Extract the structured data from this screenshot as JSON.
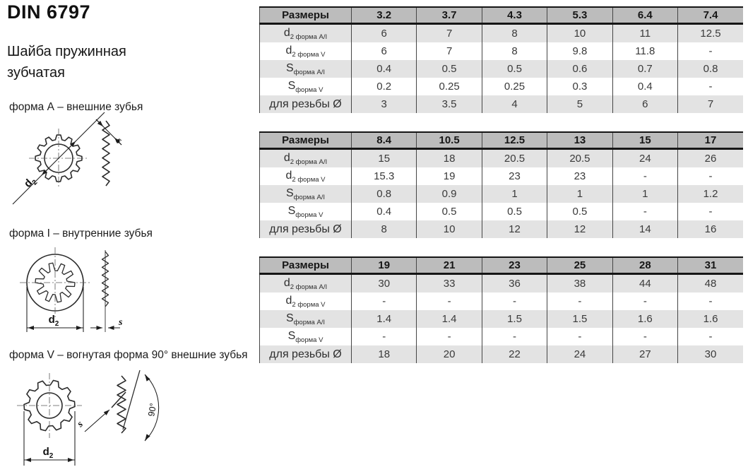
{
  "doc": {
    "title": "DIN 6797",
    "subtitle": "Шайба пружинная зубчатая"
  },
  "forms": [
    {
      "caption": "форма А – внешние зубья"
    },
    {
      "caption": "форма I – внутренние зубья"
    },
    {
      "caption": "форма V – вогнутая форма 90° внешние зубья"
    }
  ],
  "labels": {
    "d2_main": "d",
    "d2_sub": "2",
    "s": "s",
    "angle": "90°"
  },
  "tables": [
    {
      "header_label": "Размеры",
      "columns": [
        "3.2",
        "3.7",
        "4.3",
        "5.3",
        "6.4",
        "7.4"
      ],
      "rows": [
        {
          "label_main": "d",
          "label_sub": "2 форма А/I",
          "values": [
            "6",
            "7",
            "8",
            "10",
            "11",
            "12.5"
          ]
        },
        {
          "label_main": "d",
          "label_sub": "2 форма V",
          "values": [
            "6",
            "7",
            "8",
            "9.8",
            "11.8",
            "-"
          ]
        },
        {
          "label_main": "S",
          "label_sub": "форма А/I",
          "values": [
            "0.4",
            "0.5",
            "0.5",
            "0.6",
            "0.7",
            "0.8"
          ]
        },
        {
          "label_main": "S",
          "label_sub": "форма V",
          "values": [
            "0.2",
            "0.25",
            "0.25",
            "0.3",
            "0.4",
            "-"
          ]
        },
        {
          "label_main": "для резьбы Ø",
          "label_sub": "",
          "values": [
            "3",
            "3.5",
            "4",
            "5",
            "6",
            "7"
          ]
        }
      ]
    },
    {
      "header_label": "Размеры",
      "columns": [
        "8.4",
        "10.5",
        "12.5",
        "13",
        "15",
        "17"
      ],
      "rows": [
        {
          "label_main": "d",
          "label_sub": "2 форма А/I",
          "values": [
            "15",
            "18",
            "20.5",
            "20.5",
            "24",
            "26"
          ]
        },
        {
          "label_main": "d",
          "label_sub": "2 форма V",
          "values": [
            "15.3",
            "19",
            "23",
            "23",
            "-",
            "-"
          ]
        },
        {
          "label_main": "S",
          "label_sub": "форма А/I",
          "values": [
            "0.8",
            "0.9",
            "1",
            "1",
            "1",
            "1.2"
          ]
        },
        {
          "label_main": "S",
          "label_sub": "форма V",
          "values": [
            "0.4",
            "0.5",
            "0.5",
            "0.5",
            "-",
            "-"
          ]
        },
        {
          "label_main": "для резьбы Ø",
          "label_sub": "",
          "values": [
            "8",
            "10",
            "12",
            "12",
            "14",
            "16"
          ]
        }
      ]
    },
    {
      "header_label": "Размеры",
      "columns": [
        "19",
        "21",
        "23",
        "25",
        "28",
        "31"
      ],
      "rows": [
        {
          "label_main": "d",
          "label_sub": "2 форма А/I",
          "values": [
            "30",
            "33",
            "36",
            "38",
            "44",
            "48"
          ]
        },
        {
          "label_main": "d",
          "label_sub": "2 форма V",
          "values": [
            "-",
            "-",
            "-",
            "-",
            "-",
            "-"
          ]
        },
        {
          "label_main": "S",
          "label_sub": "форма А/I",
          "values": [
            "1.4",
            "1.4",
            "1.5",
            "1.5",
            "1.6",
            "1.6"
          ]
        },
        {
          "label_main": "S",
          "label_sub": "форма V",
          "values": [
            "-",
            "-",
            "-",
            "-",
            "-",
            "-"
          ]
        },
        {
          "label_main": "для резьбы Ø",
          "label_sub": "",
          "values": [
            "18",
            "20",
            "22",
            "24",
            "27",
            "30"
          ]
        }
      ]
    }
  ],
  "colors": {
    "header_bg": "#bcbcbc",
    "row_shade": "#e3e3e3",
    "row_plain": "#ffffff",
    "line_heavy": "#151515",
    "line_v": "#454545",
    "text": "#3a3a3a",
    "draw": "#2b2b2b"
  }
}
